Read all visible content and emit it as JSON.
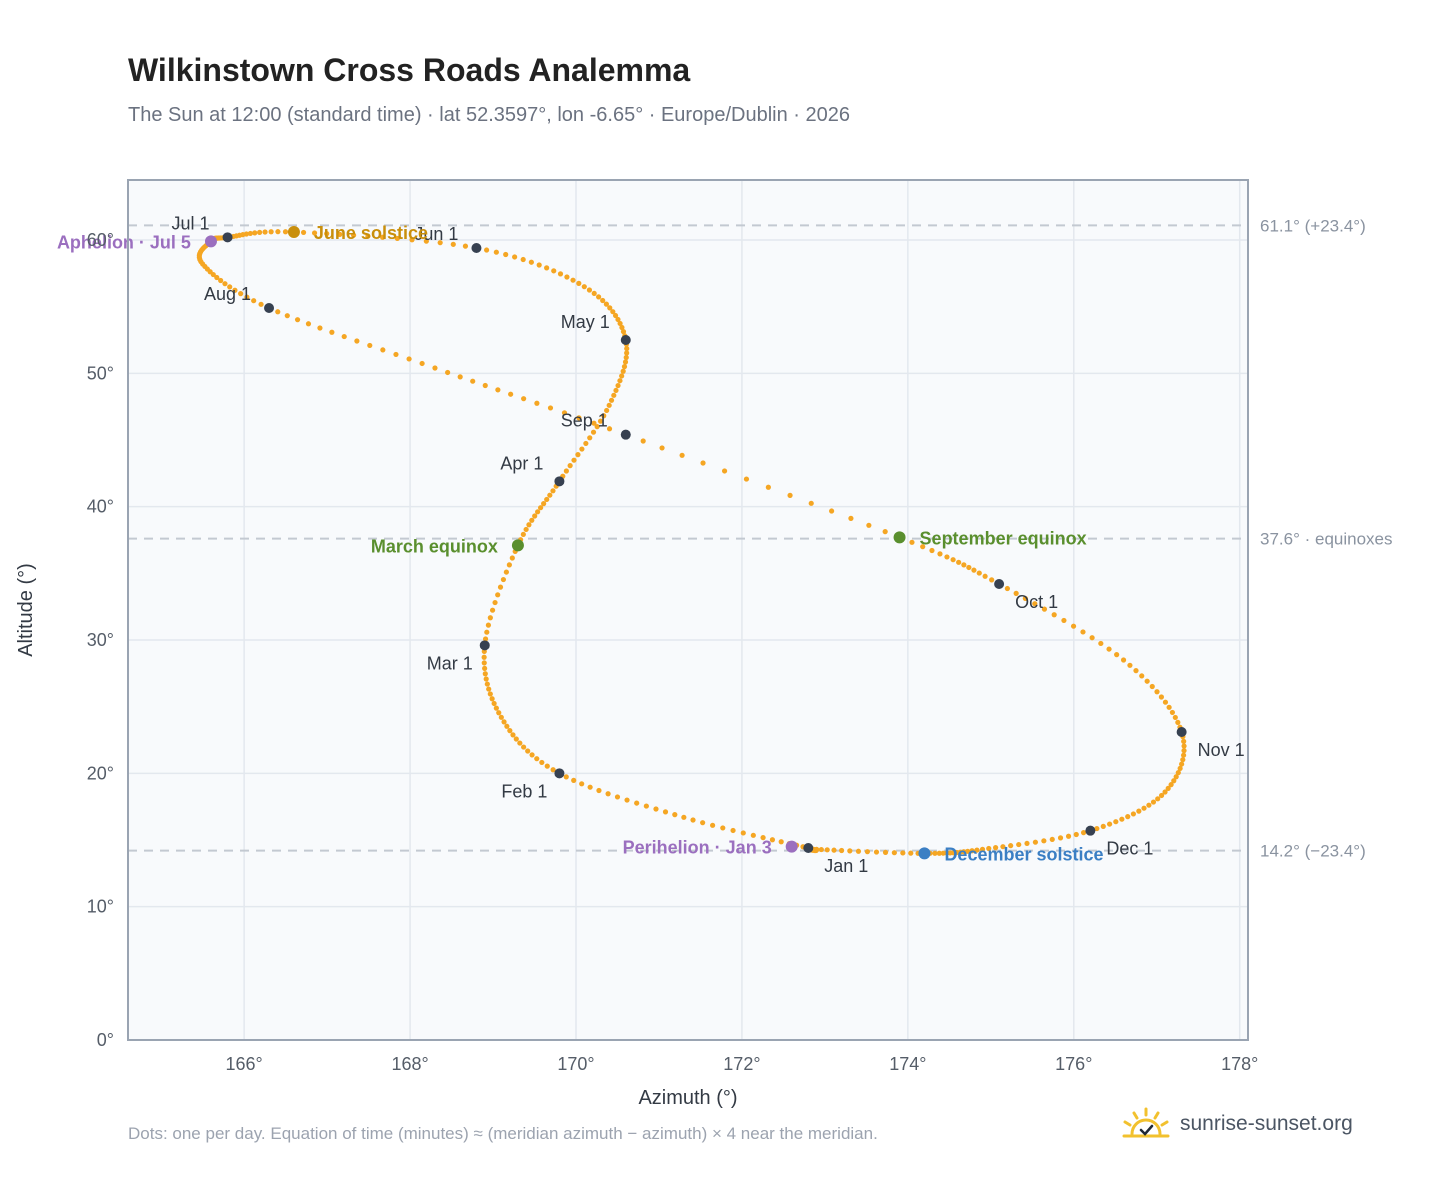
{
  "header": {
    "title": "Wilkinstown Cross Roads Analemma",
    "subtitle": "The Sun at 12:00 (standard time) · lat 52.3597°, lon -6.65° · Europe/Dublin · 2026"
  },
  "footer": {
    "note": "Dots: one per day. Equation of time (minutes) ≈ (meridian azimuth − azimuth) × 4 near the meridian.",
    "brand": "sunrise-sunset.org"
  },
  "colors": {
    "curve": "#f5a623",
    "month_dot": "#374151",
    "june_solstice": "#c98f0c",
    "december_solstice": "#3b7fc4",
    "equinox": "#5a8f2e",
    "apsis": "#9b6fbf",
    "reference_line": "#c3c9d1",
    "grid": "#e3e8ee",
    "plot_bg": "#f8fafc",
    "axis": "#9aa4b2"
  },
  "chart_data": {
    "type": "scatter",
    "title": "Wilkinstown Cross Roads Analemma",
    "xlabel": "Azimuth (°)",
    "ylabel": "Altitude (°)",
    "xlim": [
      164.6,
      178.1
    ],
    "ylim": [
      0,
      64.5
    ],
    "x_ticks": [
      166,
      168,
      170,
      172,
      174,
      176,
      178
    ],
    "y_ticks": [
      0,
      10,
      20,
      30,
      40,
      50,
      60
    ],
    "x_tick_labels": [
      "166°",
      "168°",
      "170°",
      "172°",
      "174°",
      "176°",
      "178°"
    ],
    "y_tick_labels": [
      "0°",
      "10°",
      "20°",
      "30°",
      "40°",
      "50°",
      "60°"
    ],
    "grid": true,
    "series": [
      {
        "name": "",
        "points": [
          {
            "date": "Jan 1",
            "az": 172.8,
            "alt": 14.4
          },
          {
            "date": "Jan 16",
            "az": 171.3,
            "alt": 16.7
          },
          {
            "date": "Feb 1",
            "az": 169.8,
            "alt": 20.0
          },
          {
            "date": "Feb 14",
            "az": 169.1,
            "alt": 24.2
          },
          {
            "date": "Mar 1",
            "az": 168.9,
            "alt": 29.6
          },
          {
            "date": "Mar 20",
            "az": 169.3,
            "alt": 37.1
          },
          {
            "date": "Apr 1",
            "az": 169.8,
            "alt": 41.9
          },
          {
            "date": "Apr 16",
            "az": 170.4,
            "alt": 47.6
          },
          {
            "date": "May 1",
            "az": 170.6,
            "alt": 52.5
          },
          {
            "date": "May 16",
            "az": 170.1,
            "alt": 56.5
          },
          {
            "date": "Jun 1",
            "az": 168.8,
            "alt": 59.4
          },
          {
            "date": "Jun 21",
            "az": 166.6,
            "alt": 60.6
          },
          {
            "date": "Jul 1",
            "az": 165.8,
            "alt": 60.2
          },
          {
            "date": "Jul 5",
            "az": 165.6,
            "alt": 59.9
          },
          {
            "date": "Jul 16",
            "az": 165.5,
            "alt": 58.2
          },
          {
            "date": "Aug 1",
            "az": 166.3,
            "alt": 54.9
          },
          {
            "date": "Aug 16",
            "az": 168.3,
            "alt": 50.4
          },
          {
            "date": "Sep 1",
            "az": 170.6,
            "alt": 45.4
          },
          {
            "date": "Sep 23",
            "az": 173.9,
            "alt": 37.7
          },
          {
            "date": "Oct 1",
            "az": 175.1,
            "alt": 34.2
          },
          {
            "date": "Oct 16",
            "az": 176.6,
            "alt": 28.5
          },
          {
            "date": "Nov 1",
            "az": 177.3,
            "alt": 23.1
          },
          {
            "date": "Nov 16",
            "az": 177.1,
            "alt": 18.6
          },
          {
            "date": "Dec 1",
            "az": 176.2,
            "alt": 15.7
          },
          {
            "date": "Dec 16",
            "az": 174.9,
            "alt": 14.3
          },
          {
            "date": "Dec 21",
            "az": 174.2,
            "alt": 14.0
          },
          {
            "date": "Dec 31",
            "az": 172.9,
            "alt": 14.3
          }
        ]
      }
    ],
    "month_markers": [
      {
        "label": "Jan 1",
        "az": 172.8,
        "alt": 14.4,
        "anchor": "below"
      },
      {
        "label": "Feb 1",
        "az": 169.8,
        "alt": 20.0,
        "anchor": "below-left"
      },
      {
        "label": "Mar 1",
        "az": 168.9,
        "alt": 29.6,
        "anchor": "below-left"
      },
      {
        "label": "Apr 1",
        "az": 169.8,
        "alt": 41.9,
        "anchor": "left"
      },
      {
        "label": "May 1",
        "az": 170.6,
        "alt": 52.5,
        "anchor": "left"
      },
      {
        "label": "Jun 1",
        "az": 168.8,
        "alt": 59.4,
        "anchor": "above-left"
      },
      {
        "label": "Jul 1",
        "az": 165.8,
        "alt": 60.2,
        "anchor": "above-left"
      },
      {
        "label": "Aug 1",
        "az": 166.3,
        "alt": 54.9,
        "anchor": "above-left"
      },
      {
        "label": "Sep 1",
        "az": 170.6,
        "alt": 45.4,
        "anchor": "above-left"
      },
      {
        "label": "Oct 1",
        "az": 175.1,
        "alt": 34.2,
        "anchor": "below-right"
      },
      {
        "label": "Nov 1",
        "az": 177.3,
        "alt": 23.1,
        "anchor": "below-right"
      },
      {
        "label": "Dec 1",
        "az": 176.2,
        "alt": 15.7,
        "anchor": "below-right"
      }
    ],
    "events": [
      {
        "label": "June solstice",
        "az": 166.6,
        "alt": 60.6,
        "color": "#c98f0c",
        "side": "right"
      },
      {
        "label": "December solstice",
        "az": 174.2,
        "alt": 14.0,
        "color": "#3b7fc4",
        "side": "right"
      },
      {
        "label": "March equinox",
        "az": 169.3,
        "alt": 37.1,
        "color": "#5a8f2e",
        "side": "left"
      },
      {
        "label": "September equinox",
        "az": 173.9,
        "alt": 37.7,
        "color": "#5a8f2e",
        "side": "right"
      },
      {
        "label": "Perihelion · Jan 3",
        "az": 172.6,
        "alt": 14.5,
        "color": "#9b6fbf",
        "side": "left"
      },
      {
        "label": "Aphelion · Jul 5",
        "az": 165.6,
        "alt": 59.9,
        "color": "#9b6fbf",
        "side": "left"
      }
    ],
    "reference_lines": [
      {
        "alt": 61.1,
        "label": "61.1° (+23.4°)"
      },
      {
        "alt": 37.6,
        "label": "37.6° · equinoxes"
      },
      {
        "alt": 14.2,
        "label": "14.2° (−23.4°)"
      }
    ]
  }
}
